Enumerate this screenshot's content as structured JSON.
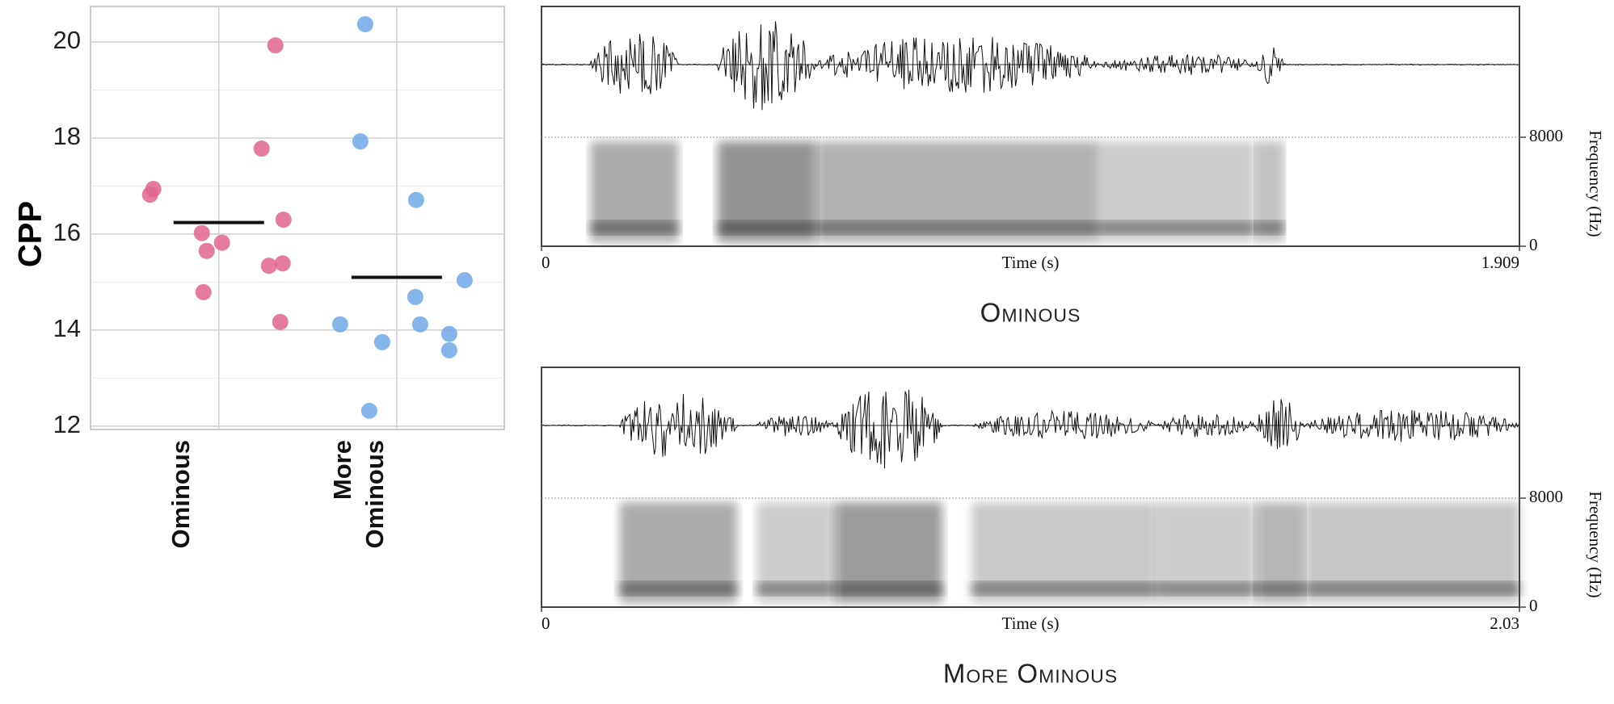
{
  "chart_data": [
    {
      "type": "strip",
      "ylabel": "CPP",
      "categories": [
        "Ominous",
        "More Ominous"
      ],
      "groups": [
        {
          "color": "#e0658f",
          "mean": 16.24,
          "values": [
            19.93,
            17.78,
            16.94,
            16.82,
            16.3,
            16.02,
            15.82,
            15.65,
            15.39,
            15.34,
            14.79,
            14.17
          ]
        },
        {
          "color": "#6fa8e8",
          "mean": 15.1,
          "values": [
            20.37,
            17.93,
            16.71,
            15.04,
            14.69,
            14.12,
            14.12,
            13.92,
            13.75,
            13.58,
            12.32
          ]
        }
      ],
      "ylim": [
        11.93,
        20.74
      ],
      "yticks": [
        12,
        14,
        16,
        18,
        20
      ],
      "grid": true
    },
    {
      "type": "waveform",
      "caption": "Ominous",
      "xlabel": "Time (s)",
      "y2label": "Frequency (Hz)",
      "xlim": [
        0,
        1.909
      ],
      "xticks": [
        0,
        1.909
      ],
      "y2lim": [
        0,
        8000
      ],
      "y2ticks": [
        0,
        8000
      ]
    },
    {
      "type": "waveform",
      "caption": "More Ominous",
      "xlabel": "Time (s)",
      "y2label": "Frequency (Hz)",
      "xlim": [
        0,
        2.03
      ],
      "xticks": [
        0,
        2.03
      ],
      "y2lim": [
        0,
        8000
      ],
      "y2ticks": [
        0,
        8000
      ]
    }
  ]
}
